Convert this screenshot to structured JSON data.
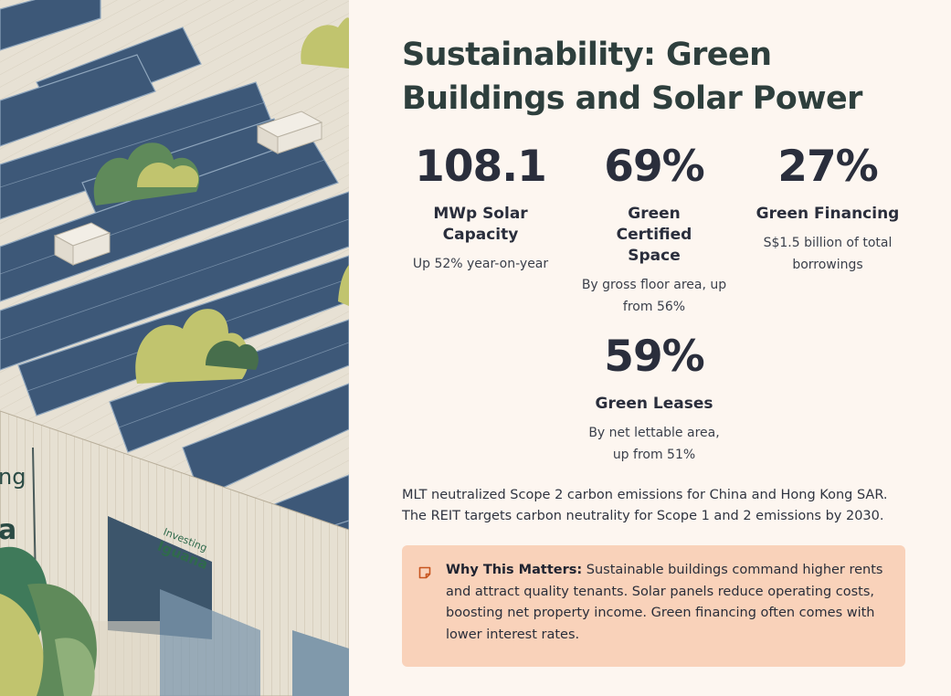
{
  "illustration": {
    "wall_sign_partial": [
      "ng",
      "a"
    ],
    "sign_text": [
      "Investing",
      "Iguana"
    ]
  },
  "header": {
    "title": "Sustainability: Green Buildings and Solar Power"
  },
  "stats": [
    {
      "value": "108.1",
      "label": "MWp Solar Capacity",
      "description": "Up 52% year-on-year"
    },
    {
      "value": "69%",
      "label": "Green Certified Space",
      "description": "By gross floor area, up from 56%"
    },
    {
      "value": "27%",
      "label": "Green Financing",
      "description": "S$1.5 billion of total borrowings"
    },
    {
      "value": "59%",
      "label": "Green Leases",
      "description": "By net lettable area, up from 51%"
    }
  ],
  "note": "MLT neutralized Scope 2 carbon emissions for China and Hong Kong SAR. The REIT targets carbon neutrality for Scope 1 and 2 emissions by 2030.",
  "callout": {
    "icon": "note-icon",
    "heading": "Why This Matters:",
    "text": "Sustainable buildings command higher rents and attract quality tenants. Solar panels reduce operating costs, boosting net property income. Green financing often comes with lower interest rates."
  },
  "colors": {
    "background": "#fdf6f0",
    "callout_bg": "#f9d2ba",
    "icon_accent": "#c8551f",
    "title": "#2e3f3d",
    "panel": "#3e5a7a",
    "leaf": "#5f8a5a"
  }
}
